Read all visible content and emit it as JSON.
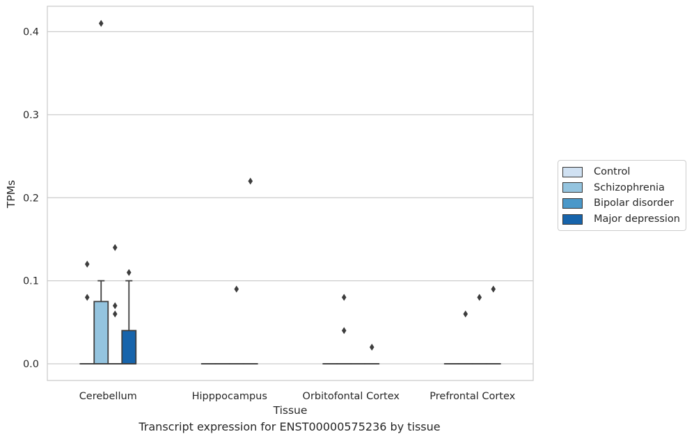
{
  "chart_data": {
    "type": "box",
    "xlabel": "Tissue",
    "ylabel": "TPMs",
    "caption": "Transcript expression for ENST00000575236 by tissue",
    "categories": [
      "Cerebellum",
      "Hipppocampus",
      "Orbitofontal Cortex",
      "Prefrontal Cortex"
    ],
    "ylim": [
      -0.02,
      0.43
    ],
    "yticks": [
      0.0,
      0.1,
      0.2,
      0.3,
      0.4
    ],
    "ytick_labels": [
      "0.0",
      "0.1",
      "0.2",
      "0.3",
      "0.4"
    ],
    "grid": true,
    "legend_position": "right",
    "series": [
      {
        "name": "Control",
        "color": "#d0e1f2",
        "boxes": [
          {
            "q1": 0,
            "median": 0,
            "q3": 0,
            "whisker_low": 0,
            "whisker_high": 0,
            "outliers": [
              0.08,
              0.12
            ]
          },
          {
            "q1": 0,
            "median": 0,
            "q3": 0,
            "whisker_low": 0,
            "whisker_high": 0,
            "outliers": []
          },
          {
            "q1": 0,
            "median": 0,
            "q3": 0,
            "whisker_low": 0,
            "whisker_high": 0,
            "outliers": []
          },
          {
            "q1": 0,
            "median": 0,
            "q3": 0,
            "whisker_low": 0,
            "whisker_high": 0,
            "outliers": []
          }
        ]
      },
      {
        "name": "Schizophrenia",
        "color": "#94c4df",
        "boxes": [
          {
            "q1": 0,
            "median": 0,
            "q3": 0.075,
            "whisker_low": 0,
            "whisker_high": 0.1,
            "outliers": [
              0.41
            ]
          },
          {
            "q1": 0,
            "median": 0,
            "q3": 0,
            "whisker_low": 0,
            "whisker_high": 0,
            "outliers": []
          },
          {
            "q1": 0,
            "median": 0,
            "q3": 0,
            "whisker_low": 0,
            "whisker_high": 0,
            "outliers": [
              0.04,
              0.08
            ]
          },
          {
            "q1": 0,
            "median": 0,
            "q3": 0,
            "whisker_low": 0,
            "whisker_high": 0,
            "outliers": [
              0.06
            ]
          }
        ]
      },
      {
        "name": "Bipolar disorder",
        "color": "#4a98c9",
        "boxes": [
          {
            "q1": 0,
            "median": 0,
            "q3": 0,
            "whisker_low": 0,
            "whisker_high": 0,
            "outliers": [
              0.06,
              0.07,
              0.14
            ]
          },
          {
            "q1": 0,
            "median": 0,
            "q3": 0,
            "whisker_low": 0,
            "whisker_high": 0,
            "outliers": [
              0.09
            ]
          },
          {
            "q1": 0,
            "median": 0,
            "q3": 0,
            "whisker_low": 0,
            "whisker_high": 0,
            "outliers": []
          },
          {
            "q1": 0,
            "median": 0,
            "q3": 0,
            "whisker_low": 0,
            "whisker_high": 0,
            "outliers": [
              0.08
            ]
          }
        ]
      },
      {
        "name": "Major depression",
        "color": "#1764ab",
        "boxes": [
          {
            "q1": 0,
            "median": 0,
            "q3": 0.04,
            "whisker_low": 0,
            "whisker_high": 0.1,
            "outliers": [
              0.11
            ]
          },
          {
            "q1": 0,
            "median": 0,
            "q3": 0,
            "whisker_low": 0,
            "whisker_high": 0,
            "outliers": [
              0.22
            ]
          },
          {
            "q1": 0,
            "median": 0,
            "q3": 0,
            "whisker_low": 0,
            "whisker_high": 0,
            "outliers": [
              0.02
            ]
          },
          {
            "q1": 0,
            "median": 0,
            "q3": 0,
            "whisker_low": 0,
            "whisker_high": 0,
            "outliers": [
              0.09
            ]
          }
        ]
      }
    ]
  }
}
